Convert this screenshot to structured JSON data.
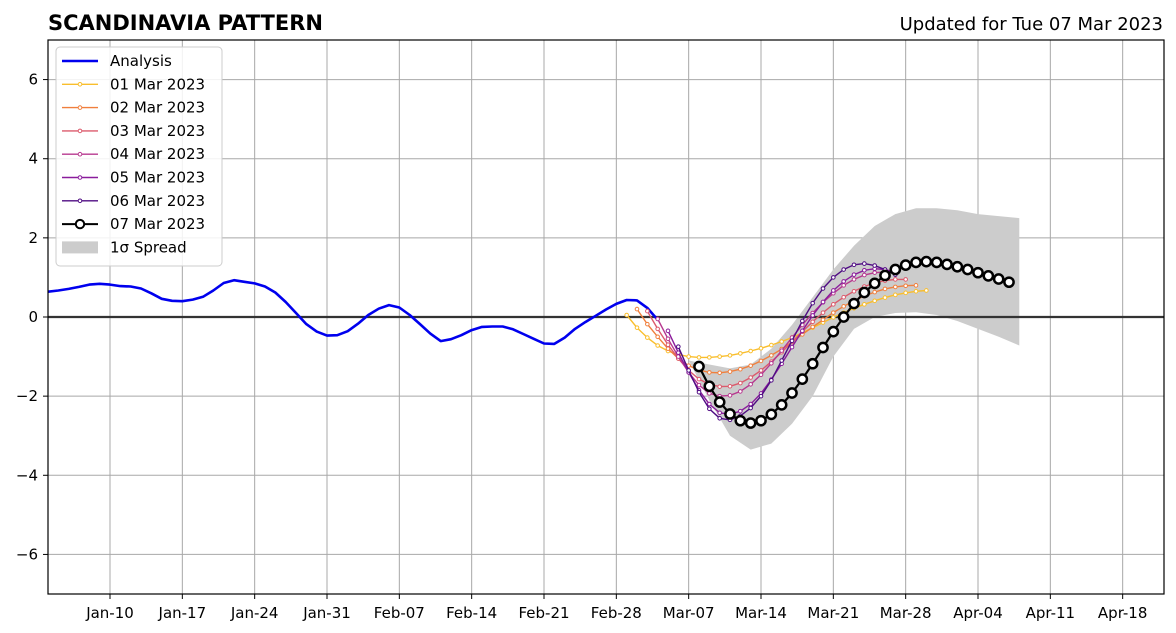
{
  "chart_data": {
    "type": "line",
    "title": "SCANDINAVIA PATTERN",
    "subtitle": "Updated for Tue 07 Mar 2023",
    "xlabel": "",
    "ylabel": "",
    "xlim": [
      "2023-01-04",
      "2023-04-22"
    ],
    "ylim": [
      -7,
      7
    ],
    "x_ticks": [
      {
        "date": "2023-01-10",
        "label": "Jan-10"
      },
      {
        "date": "2023-01-17",
        "label": "Jan-17"
      },
      {
        "date": "2023-01-24",
        "label": "Jan-24"
      },
      {
        "date": "2023-01-31",
        "label": "Jan-31"
      },
      {
        "date": "2023-02-07",
        "label": "Feb-07"
      },
      {
        "date": "2023-02-14",
        "label": "Feb-14"
      },
      {
        "date": "2023-02-21",
        "label": "Feb-21"
      },
      {
        "date": "2023-02-28",
        "label": "Feb-28"
      },
      {
        "date": "2023-03-07",
        "label": "Mar-07"
      },
      {
        "date": "2023-03-14",
        "label": "Mar-14"
      },
      {
        "date": "2023-03-21",
        "label": "Mar-21"
      },
      {
        "date": "2023-03-28",
        "label": "Mar-28"
      },
      {
        "date": "2023-04-04",
        "label": "Apr-04"
      },
      {
        "date": "2023-04-11",
        "label": "Apr-11"
      },
      {
        "date": "2023-04-18",
        "label": "Apr-18"
      }
    ],
    "y_ticks": [
      {
        "value": -6,
        "label": "−6"
      },
      {
        "value": -4,
        "label": "−4"
      },
      {
        "value": -2,
        "label": "−2"
      },
      {
        "value": 0,
        "label": "0"
      },
      {
        "value": 2,
        "label": "2"
      },
      {
        "value": 4,
        "label": "4"
      },
      {
        "value": 6,
        "label": "6"
      }
    ],
    "grid": true,
    "legend_position": "top-left",
    "legend": [
      {
        "label": "Analysis",
        "key": "analysis"
      },
      {
        "label": "01 Mar 2023",
        "key": "f0"
      },
      {
        "label": "02 Mar 2023",
        "key": "f1"
      },
      {
        "label": "03 Mar 2023",
        "key": "f2"
      },
      {
        "label": "04 Mar 2023",
        "key": "f3"
      },
      {
        "label": "05 Mar 2023",
        "key": "f4"
      },
      {
        "label": "06 Mar 2023",
        "key": "f5"
      },
      {
        "label": "07 Mar 2023",
        "key": "f6"
      },
      {
        "label": "1σ Spread",
        "key": "spread"
      }
    ],
    "analysis": {
      "name": "Analysis",
      "color": "#0000ee",
      "x_start": "2023-01-04",
      "values": [
        0.64,
        0.67,
        0.71,
        0.76,
        0.82,
        0.84,
        0.82,
        0.78,
        0.77,
        0.72,
        0.6,
        0.46,
        0.41,
        0.4,
        0.44,
        0.51,
        0.67,
        0.86,
        0.93,
        0.89,
        0.85,
        0.77,
        0.62,
        0.38,
        0.1,
        -0.18,
        -0.37,
        -0.47,
        -0.46,
        -0.36,
        -0.17,
        0.05,
        0.21,
        0.3,
        0.24,
        0.05,
        -0.18,
        -0.42,
        -0.61,
        -0.56,
        -0.46,
        -0.33,
        -0.25,
        -0.24,
        -0.24,
        -0.31,
        -0.43,
        -0.55,
        -0.67,
        -0.68,
        -0.52,
        -0.3,
        -0.13,
        0.03,
        0.19,
        0.33,
        0.43,
        0.42,
        0.23,
        -0.07
      ]
    },
    "forecasts": [
      {
        "name": "01 Mar 2023",
        "color": "#f9be2c",
        "x_start": "2023-03-01",
        "values": [
          0.05,
          -0.27,
          -0.52,
          -0.72,
          -0.86,
          -0.95,
          -1.0,
          -1.02,
          -1.02,
          -1.0,
          -0.97,
          -0.92,
          -0.86,
          -0.79,
          -0.71,
          -0.62,
          -0.52,
          -0.4,
          -0.27,
          -0.14,
          -0.01,
          0.11,
          0.22,
          0.32,
          0.41,
          0.49,
          0.56,
          0.61,
          0.65,
          0.67
        ]
      },
      {
        "name": "02 Mar 2023",
        "color": "#f07f3d",
        "x_start": "2023-03-02",
        "values": [
          0.2,
          -0.18,
          -0.5,
          -0.8,
          -1.05,
          -1.23,
          -1.34,
          -1.4,
          -1.41,
          -1.38,
          -1.32,
          -1.23,
          -1.11,
          -0.97,
          -0.81,
          -0.63,
          -0.44,
          -0.25,
          -0.07,
          0.11,
          0.27,
          0.41,
          0.53,
          0.63,
          0.71,
          0.76,
          0.79,
          0.8
        ]
      },
      {
        "name": "03 Mar 2023",
        "color": "#dc5a6c",
        "x_start": "2023-03-03",
        "values": [
          0.15,
          -0.3,
          -0.7,
          -1.05,
          -1.35,
          -1.57,
          -1.7,
          -1.76,
          -1.75,
          -1.67,
          -1.53,
          -1.35,
          -1.13,
          -0.89,
          -0.63,
          -0.37,
          -0.12,
          0.11,
          0.32,
          0.5,
          0.65,
          0.77,
          0.86,
          0.92,
          0.95,
          0.95
        ]
      },
      {
        "name": "04 Mar 2023",
        "color": "#b7388f",
        "x_start": "2023-03-04",
        "values": [
          -0.05,
          -0.55,
          -1.0,
          -1.4,
          -1.72,
          -1.93,
          -2.0,
          -1.98,
          -1.88,
          -1.7,
          -1.46,
          -1.17,
          -0.85,
          -0.52,
          -0.2,
          0.1,
          0.37,
          0.6,
          0.8,
          0.95,
          1.06,
          1.12,
          1.14,
          1.12
        ]
      },
      {
        "name": "05 Mar 2023",
        "color": "#8a1c9c",
        "x_start": "2023-03-05",
        "values": [
          -0.35,
          -0.9,
          -1.4,
          -1.85,
          -2.2,
          -2.42,
          -2.46,
          -2.38,
          -2.2,
          -1.93,
          -1.58,
          -1.18,
          -0.76,
          -0.35,
          0.04,
          0.38,
          0.67,
          0.9,
          1.07,
          1.18,
          1.22,
          1.2,
          1.13
        ]
      },
      {
        "name": "06 Mar 2023",
        "color": "#4f0c83",
        "x_start": "2023-03-06",
        "values": [
          -0.75,
          -1.35,
          -1.9,
          -2.32,
          -2.56,
          -2.6,
          -2.5,
          -2.3,
          -2.0,
          -1.6,
          -1.1,
          -0.6,
          -0.1,
          0.35,
          0.72,
          1.0,
          1.2,
          1.32,
          1.35,
          1.3,
          1.2,
          1.07
        ]
      }
    ],
    "latest": {
      "name": "07 Mar 2023",
      "color": "#000000",
      "x_start": "2023-03-08",
      "values": [
        -1.25,
        -1.75,
        -2.15,
        -2.45,
        -2.62,
        -2.68,
        -2.62,
        -2.46,
        -2.22,
        -1.92,
        -1.57,
        -1.18,
        -0.77,
        -0.37,
        0.0,
        0.34,
        0.62,
        0.85,
        1.05,
        1.2,
        1.31,
        1.38,
        1.4,
        1.38,
        1.33,
        1.27,
        1.2,
        1.12,
        1.04,
        0.96,
        0.88
      ]
    },
    "spread": {
      "name": "1σ Spread",
      "color": "#cccccc",
      "x": [
        "2023-03-07",
        "2023-03-09",
        "2023-03-11",
        "2023-03-13",
        "2023-03-15",
        "2023-03-17",
        "2023-03-19",
        "2023-03-21",
        "2023-03-23",
        "2023-03-25",
        "2023-03-27",
        "2023-03-29",
        "2023-03-31",
        "2023-04-02",
        "2023-04-04",
        "2023-04-06",
        "2023-04-08"
      ],
      "upper": [
        -1.1,
        -1.2,
        -1.3,
        -1.2,
        -0.8,
        -0.2,
        0.5,
        1.2,
        1.8,
        2.3,
        2.6,
        2.75,
        2.75,
        2.7,
        2.6,
        2.55,
        2.5
      ],
      "lower": [
        -1.1,
        -2.1,
        -3.0,
        -3.35,
        -3.2,
        -2.7,
        -2.0,
        -1.0,
        -0.3,
        0.0,
        0.1,
        0.12,
        0.05,
        -0.1,
        -0.3,
        -0.5,
        -0.72
      ]
    }
  }
}
